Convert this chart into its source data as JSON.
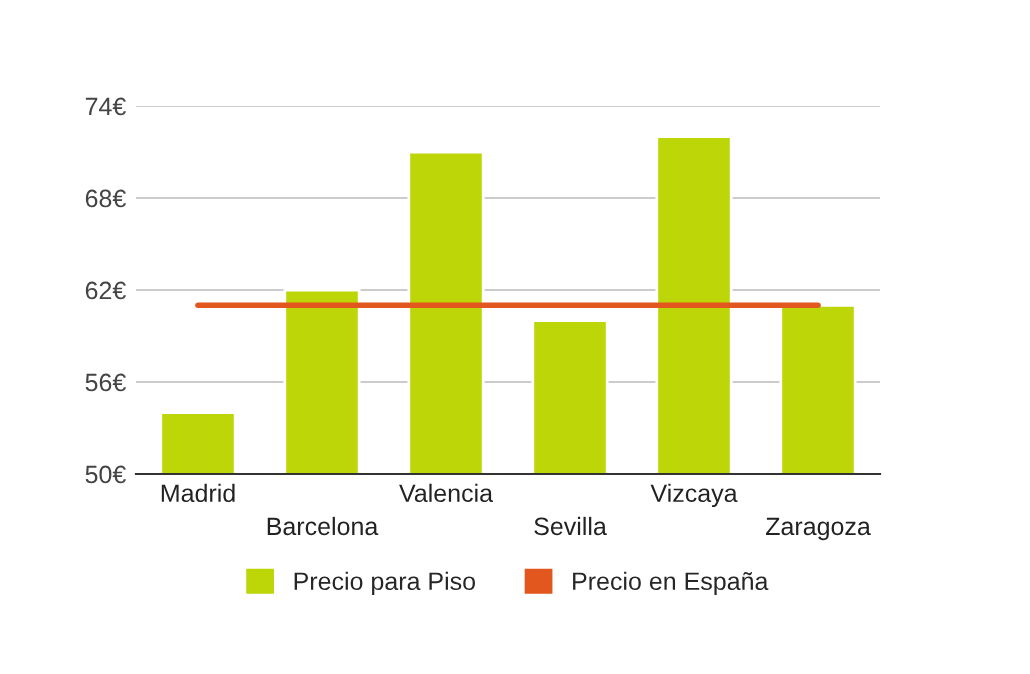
{
  "chart_data": {
    "type": "bar",
    "categories": [
      "Madrid",
      "Barcelona",
      "Valencia",
      "Sevilla",
      "Vizcaya",
      "Zaragoza"
    ],
    "series": [
      {
        "name": "Precio para Piso",
        "color": "#bcd608",
        "values": [
          54,
          62,
          71,
          60,
          72,
          61
        ]
      },
      {
        "name": "Precio en España",
        "type": "line",
        "color": "#e2571e",
        "values": [
          61,
          61,
          61,
          61,
          61,
          61
        ]
      }
    ],
    "ylim": [
      50,
      74
    ],
    "yticks": [
      {
        "value": 50,
        "label": "50€"
      },
      {
        "value": 56,
        "label": "56€"
      },
      {
        "value": 62,
        "label": "62€"
      },
      {
        "value": 68,
        "label": "68€"
      },
      {
        "value": 74,
        "label": "74€"
      }
    ],
    "grid": "y",
    "legend": "bottom"
  }
}
